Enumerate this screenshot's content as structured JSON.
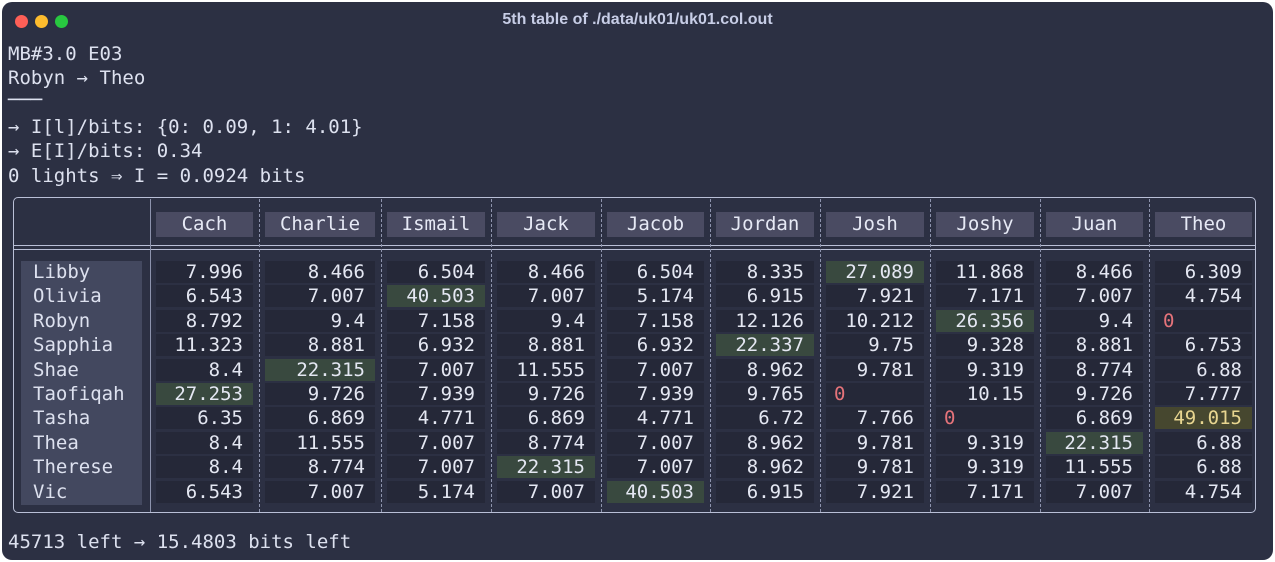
{
  "window": {
    "title": "5th table of ./data/uk01/uk01.col.out"
  },
  "header_lines": [
    "MB#3.0 E03",
    "Robyn → Theo",
    "───",
    "→ I[l]/bits: {0: 0.09, 1: 4.01}",
    "→ E[I]/bits: 0.34",
    "0 lights ⇒ I = 0.0924 bits"
  ],
  "table": {
    "columns": [
      "Cach",
      "Charlie",
      "Ismail",
      "Jack",
      "Jacob",
      "Jordan",
      "Josh",
      "Joshy",
      "Juan",
      "Theo"
    ],
    "rows": [
      {
        "name": "Libby",
        "values": [
          "7.996",
          "8.466",
          "6.504",
          "8.466",
          "6.504",
          "8.335",
          "27.089",
          "11.868",
          "8.466",
          "6.309"
        ]
      },
      {
        "name": "Olivia",
        "values": [
          "6.543",
          "7.007",
          "40.503",
          "7.007",
          "5.174",
          "6.915",
          "7.921",
          "7.171",
          "7.007",
          "4.754"
        ]
      },
      {
        "name": "Robyn",
        "values": [
          "8.792",
          "9.4",
          "7.158",
          "9.4",
          "7.158",
          "12.126",
          "10.212",
          "26.356",
          "9.4",
          "0"
        ]
      },
      {
        "name": "Sapphia",
        "values": [
          "11.323",
          "8.881",
          "6.932",
          "8.881",
          "6.932",
          "22.337",
          "9.75",
          "9.328",
          "8.881",
          "6.753"
        ]
      },
      {
        "name": "Shae",
        "values": [
          "8.4",
          "22.315",
          "7.007",
          "11.555",
          "7.007",
          "8.962",
          "9.781",
          "9.319",
          "8.774",
          "6.88"
        ]
      },
      {
        "name": "Taofiqah",
        "values": [
          "27.253",
          "9.726",
          "7.939",
          "9.726",
          "7.939",
          "9.765",
          "0",
          "10.15",
          "9.726",
          "7.777"
        ]
      },
      {
        "name": "Tasha",
        "values": [
          "6.35",
          "6.869",
          "4.771",
          "6.869",
          "4.771",
          "6.72",
          "7.766",
          "0",
          "6.869",
          "49.015"
        ]
      },
      {
        "name": "Thea",
        "values": [
          "8.4",
          "11.555",
          "7.007",
          "8.774",
          "7.007",
          "8.962",
          "9.781",
          "9.319",
          "22.315",
          "6.88"
        ]
      },
      {
        "name": "Therese",
        "values": [
          "8.4",
          "8.774",
          "7.007",
          "22.315",
          "7.007",
          "8.962",
          "9.781",
          "9.319",
          "11.555",
          "6.88"
        ]
      },
      {
        "name": "Vic",
        "values": [
          "6.543",
          "7.007",
          "5.174",
          "7.007",
          "40.503",
          "6.915",
          "7.921",
          "7.171",
          "7.007",
          "4.754"
        ]
      }
    ],
    "highlights": {
      "green": [
        [
          0,
          6
        ],
        [
          1,
          2
        ],
        [
          2,
          7
        ],
        [
          3,
          5
        ],
        [
          4,
          1
        ],
        [
          5,
          0
        ],
        [
          7,
          8
        ],
        [
          8,
          3
        ],
        [
          9,
          4
        ]
      ],
      "yellow": [
        [
          6,
          9
        ]
      ],
      "zero_color": "#e5737a"
    }
  },
  "footer": "45713 left → 15.4803 bits left",
  "colors": {
    "background": "#2c3043",
    "header_cell": "#4a4b62",
    "name_column": "#43485f",
    "cell": "#252838",
    "highlight_green": "#39493f",
    "highlight_yellow": "#46472f",
    "border": "#b9bfd6"
  }
}
